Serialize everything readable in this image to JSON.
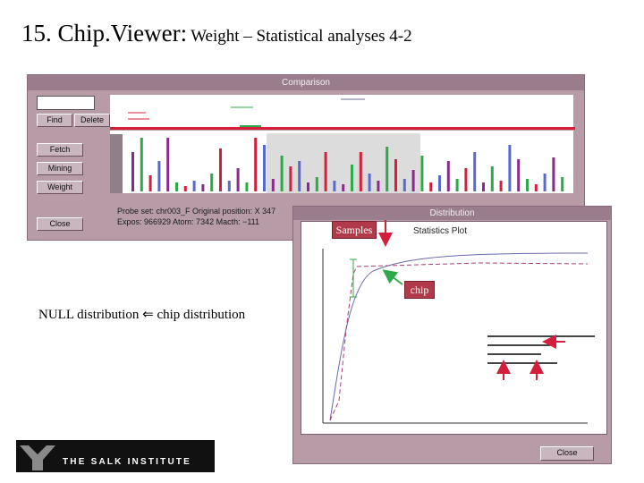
{
  "slide": {
    "title_big": "15. Chip.Viewer:",
    "title_small": "Weight – Statistical analyses 4-2"
  },
  "comparison_window": {
    "title": "Comparison",
    "buttons": {
      "find": "Find",
      "delete": "Delete",
      "fetch": "Fetch",
      "mining": "Mining",
      "weight": "Weight",
      "close": "Close"
    },
    "status": {
      "line1": "Probe set: chr003_F   Original position: X 347",
      "line2": "Expos: 966929   Atom: 7342   Macth: −111"
    }
  },
  "distribution_window": {
    "title": "Distribution",
    "plot_title": "Statistics Plot",
    "close": "Close"
  },
  "annotations": {
    "samples": "Samples",
    "chip": "chip",
    "null_distribution": "NULL distribution",
    "chip_distribution": "chip distribution",
    "arrow_glyph": "⇐"
  },
  "logo": {
    "text": "THE SALK INSTITUTE"
  },
  "colors": {
    "accent_red": "#d41f3a",
    "window_bg": "#b79ca8",
    "arrow_green": "#2ea84a"
  }
}
